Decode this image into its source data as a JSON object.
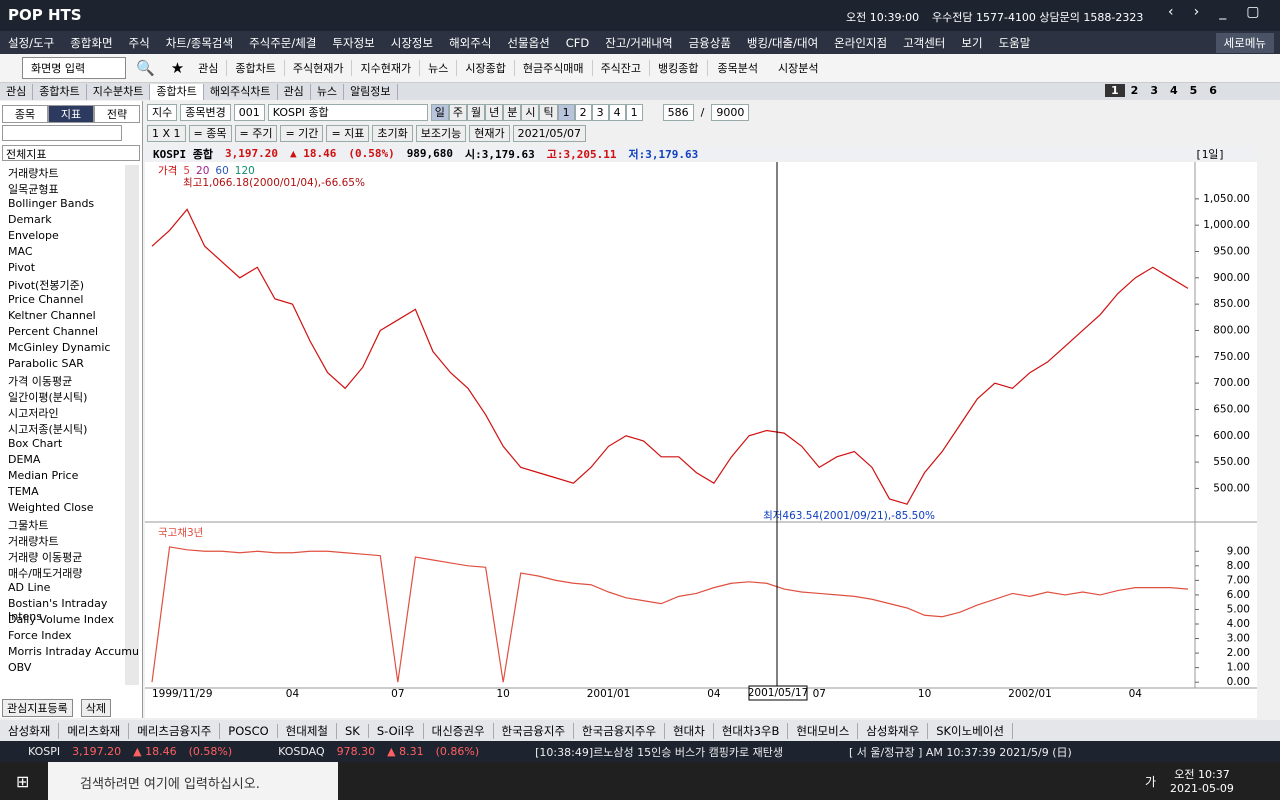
{
  "title_bar": {
    "logo": "POP HTS",
    "time": "오전 10:39:00",
    "contact": "우수전담 1577-4100 상담문의 1588-2323"
  },
  "menu": [
    "설정/도구",
    "종합화면",
    "주식",
    "차트/종목검색",
    "주식주문/체결",
    "투자정보",
    "시장정보",
    "해외주식",
    "선물옵션",
    "CFD",
    "잔고/거래내역",
    "금융상품",
    "뱅킹/대출/대여",
    "온라인지점",
    "고객센터",
    "보기",
    "도움말"
  ],
  "menu_right": "세로메뉴",
  "toolbar": {
    "screen_input": "화면명 입력",
    "items": [
      "관심",
      "종합차트",
      "주식현재가",
      "지수현재가",
      "뉴스",
      "시장종합",
      "현금주식매매",
      "주식잔고",
      "뱅킹종합"
    ],
    "folders": [
      "종목분석",
      "시장분석"
    ]
  },
  "window_tabs": [
    "관심",
    "종합차트",
    "지수분차트",
    "종합차트",
    "해외주식차트",
    "관심",
    "뉴스",
    "알림정보"
  ],
  "page_numbers": [
    "1",
    "2",
    "3",
    "4",
    "5",
    "6"
  ],
  "left_panel": {
    "tabs": [
      "종목",
      "지표",
      "전략"
    ],
    "dropdown": "전체지표",
    "items": [
      "거래량차트",
      "일목균형표",
      "Bollinger Bands",
      "Demark",
      "Envelope",
      "MAC",
      "Pivot",
      "Pivot(전봉기준)",
      "Price Channel",
      "Keltner Channel",
      "Percent Channel",
      "McGinley Dynamic",
      "Parabolic SAR",
      "가격 이동평균",
      "일간이평(분시틱)",
      "시고저라인",
      "시고저종(분시틱)",
      "Box Chart",
      "DEMA",
      "Median Price",
      "TEMA",
      "Weighted Close",
      "그물차트",
      "거래량차트",
      "거래량 이동평균",
      "매수/매도거래량",
      "AD Line",
      "Bostian's Intraday Intens",
      "Daily Volume Index",
      "Force Index",
      "Morris Intraday Accumu",
      "OBV"
    ],
    "buttons": [
      "관심지표등록",
      "삭제"
    ]
  },
  "controls": {
    "row1": [
      "지수",
      "종목변경",
      "001",
      "KOSPI 종합"
    ],
    "periods": [
      "일",
      "주",
      "월",
      "년",
      "분",
      "시",
      "틱"
    ],
    "multipliers": [
      "1",
      "2",
      "3",
      "4",
      "1"
    ],
    "count": "586",
    "slash": "/",
    "max": "9000",
    "row2": [
      "1 X 1",
      "= 종목",
      "= 주기",
      "= 기간",
      "= 지표",
      "초기화",
      "보조기능",
      "현재가",
      "2021/05/07"
    ]
  },
  "quote": {
    "name": "KOSPI 종합",
    "price": "3,197.20",
    "change": "▲ 18.46",
    "rate": "(0.58%)",
    "volume": "989,680",
    "open": "시:3,179.63",
    "high": "고:3,205.11",
    "low": "저:3,179.63",
    "period": "[1일]"
  },
  "chart_data": [
    {
      "type": "line",
      "legend": [
        {
          "name": "가격",
          "color": "#d01010"
        },
        {
          "name": "5",
          "color": "#e04040"
        },
        {
          "name": "20",
          "color": "#a0208a"
        },
        {
          "name": "60",
          "color": "#2a58c0"
        },
        {
          "name": "120",
          "color": "#109070"
        }
      ],
      "high_note": "최고1,066.18(2000/01/04),-66.65%",
      "low_note": "최저463.54(2001/09/21),-85.50%",
      "categories": [
        "1999/11/29",
        null,
        null,
        null,
        null,
        null,
        null,
        null,
        "04",
        null,
        null,
        null,
        null,
        null,
        "07",
        null,
        null,
        null,
        null,
        null,
        "10",
        null,
        null,
        null,
        null,
        null,
        "2001/01",
        null,
        null,
        null,
        null,
        null,
        "04",
        null,
        null,
        null,
        null,
        null,
        "07",
        null,
        null,
        null,
        null,
        null,
        "10",
        null,
        null,
        null,
        null,
        null,
        "2002/01",
        null,
        null,
        null,
        null,
        null,
        "04",
        null,
        null,
        null
      ],
      "values": [
        960,
        990,
        1030,
        960,
        930,
        900,
        920,
        860,
        850,
        780,
        720,
        690,
        730,
        800,
        820,
        840,
        760,
        720,
        690,
        640,
        580,
        540,
        530,
        520,
        510,
        540,
        580,
        600,
        590,
        560,
        560,
        530,
        510,
        560,
        600,
        610,
        605,
        580,
        540,
        560,
        570,
        540,
        480,
        470,
        530,
        570,
        620,
        670,
        700,
        690,
        720,
        740,
        770,
        800,
        830,
        870,
        900,
        920,
        900,
        880
      ],
      "color": "#d01010",
      "ylim": [
        440,
        1120
      ],
      "yticks": [
        {
          "value": 500,
          "label": "500.00"
        },
        {
          "value": 550,
          "label": "550.00"
        },
        {
          "value": 600,
          "label": "600.00"
        },
        {
          "value": 650,
          "label": "650.00"
        },
        {
          "value": 700,
          "label": "700.00"
        },
        {
          "value": 750,
          "label": "750.00"
        },
        {
          "value": 800,
          "label": "800.00"
        },
        {
          "value": 850,
          "label": "850.00"
        },
        {
          "value": 900,
          "label": "900.00"
        },
        {
          "value": 950,
          "label": "950.00"
        },
        {
          "value": 1000,
          "label": "1,000.00"
        },
        {
          "value": 1050,
          "label": "1,050.00"
        }
      ]
    },
    {
      "type": "line",
      "name": "국고채3년",
      "color": "#e05040",
      "values": [
        0,
        9.3,
        9.1,
        9.0,
        9.0,
        8.9,
        9.0,
        8.9,
        8.9,
        9.0,
        9.0,
        8.9,
        8.8,
        8.7,
        0,
        8.6,
        8.4,
        8.2,
        8.0,
        7.9,
        0,
        7.5,
        7.3,
        7.0,
        6.8,
        6.7,
        6.2,
        5.8,
        5.6,
        5.4,
        5.9,
        6.1,
        6.5,
        6.8,
        6.9,
        6.8,
        6.4,
        6.2,
        6.1,
        6.0,
        5.9,
        5.7,
        5.4,
        5.1,
        4.6,
        4.5,
        4.8,
        5.3,
        5.7,
        6.1,
        5.9,
        6.2,
        6.0,
        6.2,
        6.0,
        6.3,
        6.5,
        6.5,
        6.5,
        6.4
      ],
      "ylim": [
        -0.4,
        10.6
      ],
      "yticks": [
        {
          "value": 0,
          "label": "0.00"
        },
        {
          "value": 1,
          "label": "1.00"
        },
        {
          "value": 2,
          "label": "2.00"
        },
        {
          "value": 3,
          "label": "3.00"
        },
        {
          "value": 4,
          "label": "4.00"
        },
        {
          "value": 5,
          "label": "5.00"
        },
        {
          "value": 6,
          "label": "6.00"
        },
        {
          "value": 7,
          "label": "7.00"
        },
        {
          "value": 8,
          "label": "8.00"
        },
        {
          "value": 9,
          "label": "9.00"
        }
      ]
    }
  ],
  "cursor_label": "2001/05/17",
  "stock_tabs": [
    "삼성화재",
    "메리츠화재",
    "메리츠금융지주",
    "POSCO",
    "현대제철",
    "SK",
    "S-Oil우",
    "대신증권우",
    "한국금융지주",
    "한국금융지주우",
    "현대차",
    "현대차3우B",
    "현대모비스",
    "삼성화재우",
    "SK이노베이션"
  ],
  "status_bar": {
    "kospi": "KOSPI",
    "kospi_price": "3,197.20",
    "kospi_change": "▲ 18.46",
    "kospi_rate": "(0.58%)",
    "kosdaq": "KOSDAQ",
    "kosdaq_price": "978.30",
    "kosdaq_change": "▲ 8.31",
    "kosdaq_rate": "(0.86%)",
    "news": "[10:38:49]르노삼성 15인승 버스가 캠핑카로 재탄생",
    "market": "[ 서 울/정규장 ] AM 10:37:39 2021/5/9 (日)"
  },
  "taskbar": {
    "search": "검색하려면 여기에 입력하십시오.",
    "ime": "가",
    "time": "오전 10:37",
    "date": "2021-05-09"
  }
}
